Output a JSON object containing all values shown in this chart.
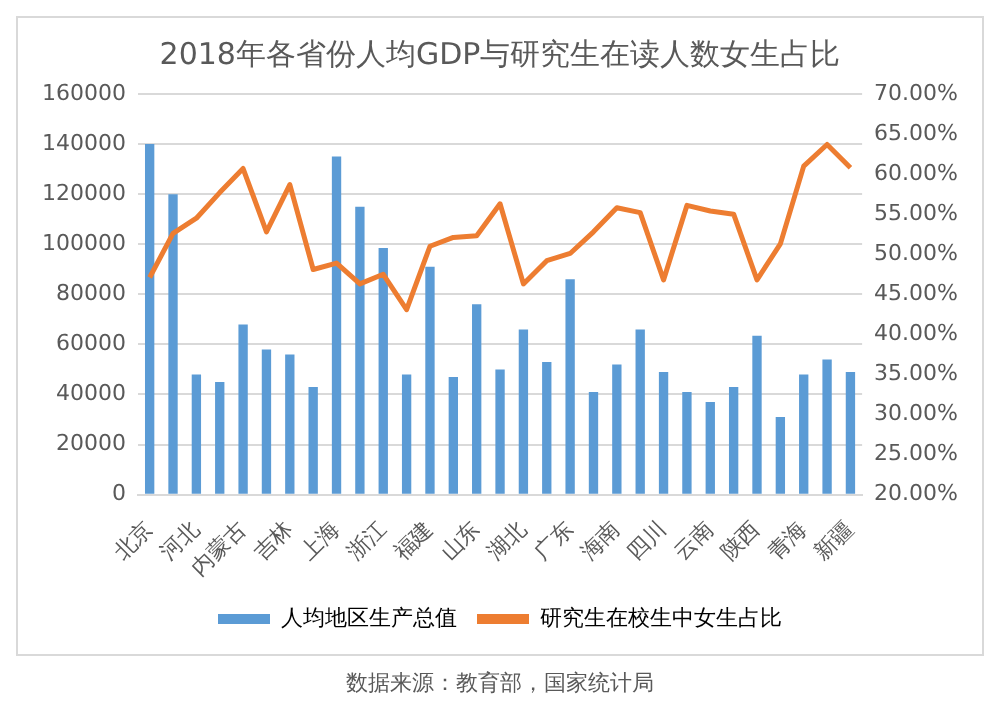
{
  "chart_data": {
    "type": "bar",
    "title": "2018年各省份人均GDP与研究生在读人数女生占比",
    "categories": [
      "北京",
      null,
      "河北",
      null,
      "内蒙古",
      null,
      "吉林",
      null,
      "上海",
      null,
      "浙江",
      null,
      "福建",
      null,
      "山东",
      null,
      "湖北",
      null,
      "广东",
      null,
      "海南",
      null,
      "四川",
      null,
      "云南",
      null,
      "陕西",
      null,
      "青海",
      null,
      "新疆"
    ],
    "series": [
      {
        "name": "人均地区生产总值",
        "color": "#5b9bd5",
        "values": [
          140000,
          120000,
          48000,
          45000,
          68000,
          58000,
          56000,
          43000,
          135000,
          115000,
          98500,
          48000,
          91000,
          47000,
          76000,
          50000,
          66000,
          53000,
          86000,
          41000,
          52000,
          66000,
          49000,
          41000,
          37000,
          43000,
          63500,
          31000,
          48000,
          54000,
          49000
        ]
      },
      {
        "name": "研究生在校生中女生占比",
        "type": "line",
        "axis": "y2",
        "color": "#ed7d31",
        "values": [
          47.1,
          52.6,
          54.5,
          57.7,
          60.7,
          52.8,
          58.7,
          48.1,
          48.9,
          46.3,
          47.5,
          43.1,
          51.0,
          52.1,
          52.3,
          56.3,
          46.3,
          49.2,
          50.1,
          52.8,
          55.8,
          55.2,
          46.8,
          56.1,
          55.4,
          55.0,
          46.8,
          51.3,
          61.0,
          63.7,
          60.8
        ]
      }
    ],
    "ylim": [
      0,
      160000
    ],
    "yticks": [
      0,
      20000,
      40000,
      60000,
      80000,
      100000,
      120000,
      140000,
      160000
    ],
    "y2lim": [
      20,
      70
    ],
    "y2ticks": [
      {
        "value": 20,
        "label": "20.00%"
      },
      {
        "value": 25,
        "label": "25.00%"
      },
      {
        "value": 30,
        "label": "30.00%"
      },
      {
        "value": 35,
        "label": "35.00%"
      },
      {
        "value": 40,
        "label": "40.00%"
      },
      {
        "value": 45,
        "label": "45.00%"
      },
      {
        "value": 50,
        "label": "50.00%"
      },
      {
        "value": 55,
        "label": "55.00%"
      },
      {
        "value": 60,
        "label": "60.00%"
      },
      {
        "value": 65,
        "label": "65.00%"
      },
      {
        "value": 70,
        "label": "70.00%"
      }
    ],
    "grid": "y",
    "legend": "bottom",
    "marker": "none",
    "line_style": "solid",
    "annotations": [
      "数据来源：教育部，国家统计局"
    ]
  }
}
